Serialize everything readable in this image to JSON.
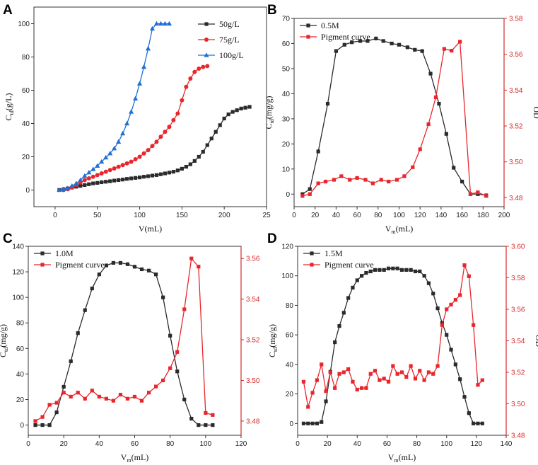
{
  "colors": {
    "black_series": "#2b2b2b",
    "red_series": "#e8262c",
    "blue_series": "#1f6fd6",
    "right_axis": "#d42a2a"
  },
  "chart_data": [
    {
      "panel": "A",
      "type": "line",
      "xlabel": "V(mL)",
      "ylabel": "C",
      "ylabel_sub": "td",
      "ylabel_unit": "(g/L)",
      "xlim": [
        -25,
        250
      ],
      "ylim": [
        -10,
        110
      ],
      "xticks": [
        "0",
        "50",
        "100",
        "150",
        "200",
        "25"
      ],
      "yticks": [
        "0",
        "20",
        "40",
        "60",
        "80",
        "100"
      ],
      "legend_position": "top-right",
      "series": [
        {
          "name": "50g/L",
          "color": "#2b2b2b",
          "marker": "square",
          "x": [
            5,
            10,
            15,
            20,
            25,
            30,
            35,
            40,
            45,
            50,
            55,
            60,
            65,
            70,
            75,
            80,
            85,
            90,
            95,
            100,
            105,
            110,
            115,
            120,
            125,
            130,
            135,
            140,
            145,
            150,
            155,
            160,
            165,
            170,
            175,
            180,
            185,
            190,
            195,
            200,
            205,
            210,
            215,
            220,
            225,
            230
          ],
          "y": [
            0,
            0.5,
            1,
            1.5,
            2,
            2.5,
            3,
            3.5,
            4,
            4.3,
            4.7,
            5,
            5.3,
            5.7,
            6,
            6.3,
            6.7,
            7,
            7.3,
            7.6,
            8,
            8.3,
            8.7,
            9,
            9.5,
            10,
            10.5,
            11,
            11.8,
            12.8,
            14,
            15.5,
            17.5,
            20,
            23,
            27,
            31,
            35,
            39,
            43,
            45.5,
            47,
            48,
            49,
            49.5,
            50
          ]
        },
        {
          "name": "75g/L",
          "color": "#e8262c",
          "marker": "circle",
          "x": [
            10,
            15,
            20,
            25,
            30,
            35,
            40,
            45,
            50,
            55,
            60,
            65,
            70,
            75,
            80,
            85,
            90,
            95,
            100,
            105,
            110,
            115,
            120,
            125,
            130,
            135,
            140,
            145,
            150,
            155,
            160,
            165,
            170,
            175,
            180
          ],
          "y": [
            0,
            0.5,
            1.5,
            3,
            4.5,
            6,
            7,
            8,
            9,
            10,
            11,
            12,
            13,
            14,
            15,
            16,
            17,
            18.5,
            20,
            22,
            24,
            26.5,
            29,
            32,
            35,
            38,
            42,
            46,
            54,
            62,
            67,
            71,
            73,
            74,
            74.5
          ]
        },
        {
          "name": "100g/L",
          "color": "#1f6fd6",
          "marker": "triangle",
          "x": [
            5,
            10,
            15,
            20,
            25,
            30,
            35,
            40,
            45,
            50,
            55,
            60,
            65,
            70,
            75,
            80,
            85,
            90,
            95,
            100,
            105,
            110,
            115,
            120,
            125,
            130,
            135
          ],
          "y": [
            0,
            0.5,
            1,
            2.5,
            4,
            6,
            8.5,
            10.5,
            12.5,
            14.5,
            17,
            19.5,
            22,
            25,
            29,
            34,
            40,
            47,
            55,
            64,
            74,
            85,
            97,
            100,
            100,
            100,
            100
          ]
        }
      ]
    },
    {
      "panel": "B",
      "type": "line",
      "xlabel": "V",
      "xlabel_sub": "m",
      "xlabel_unit": "(mL)",
      "ylabel": "C",
      "ylabel_sub": "td",
      "ylabel_unit": "(mg/g)",
      "y2label": "OD",
      "xlim": [
        0,
        200
      ],
      "ylim": [
        -5,
        70
      ],
      "y2lim": [
        3.475,
        3.58
      ],
      "xticks": [
        "0",
        "20",
        "40",
        "60",
        "80",
        "100",
        "120",
        "140",
        "160",
        "180",
        "200"
      ],
      "yticks": [
        "0",
        "10",
        "20",
        "30",
        "40",
        "50",
        "60",
        "70"
      ],
      "y2ticks": [
        "3.48",
        "3.50",
        "3.52",
        "3.54",
        "3.56",
        "3.58"
      ],
      "legend_position": "top-left",
      "series": [
        {
          "name": "0.5M",
          "color": "#2b2b2b",
          "marker": "square",
          "axis": "left",
          "x": [
            8,
            15,
            23,
            32,
            40,
            48,
            55,
            63,
            70,
            78,
            85,
            93,
            100,
            108,
            115,
            122,
            130,
            138,
            145,
            152,
            160,
            168,
            175,
            183
          ],
          "y": [
            0,
            2,
            17,
            36,
            57,
            59.5,
            60.5,
            61,
            61,
            62,
            61,
            60,
            59.5,
            58.5,
            57.5,
            57,
            48,
            36,
            24,
            10.5,
            5,
            0,
            0,
            -0.5
          ]
        },
        {
          "name": "Pigment curve",
          "color": "#e8262c",
          "marker": "square",
          "axis": "right",
          "x": [
            8,
            15,
            23,
            30,
            38,
            45,
            53,
            60,
            68,
            75,
            83,
            90,
            98,
            105,
            113,
            120,
            128,
            135,
            143,
            150,
            158,
            168,
            175,
            183
          ],
          "y": [
            3.481,
            3.482,
            3.488,
            3.489,
            3.49,
            3.492,
            3.49,
            3.491,
            3.49,
            3.488,
            3.49,
            3.489,
            3.49,
            3.492,
            3.497,
            3.507,
            3.521,
            3.536,
            3.563,
            3.562,
            3.567,
            3.482,
            3.483,
            3.481
          ]
        }
      ]
    },
    {
      "panel": "C",
      "type": "line",
      "xlabel": "V",
      "xlabel_sub": "m",
      "xlabel_unit": "(mL)",
      "ylabel": "C",
      "ylabel_sub": "td",
      "ylabel_unit": "(mg/g)",
      "y2label": "",
      "xlim": [
        0,
        120
      ],
      "ylim": [
        -8,
        140
      ],
      "y2lim": [
        3.473,
        3.566
      ],
      "xticks": [
        "0",
        "20",
        "40",
        "60",
        "80",
        "100",
        "120"
      ],
      "yticks": [
        "0",
        "20",
        "40",
        "60",
        "80",
        "100",
        "120",
        "140"
      ],
      "y2ticks": [
        "3.48",
        "3.50",
        "3.52",
        "3.54",
        "3.56"
      ],
      "legend_position": "top-left",
      "series": [
        {
          "name": "1.0M",
          "color": "#2b2b2b",
          "marker": "square",
          "axis": "left",
          "x": [
            4,
            8,
            12,
            16,
            20,
            24,
            28,
            32,
            36,
            40,
            44,
            48,
            52,
            56,
            60,
            64,
            68,
            72,
            76,
            80,
            84,
            88,
            92,
            96,
            100,
            104
          ],
          "y": [
            0,
            0,
            0,
            10,
            30,
            50,
            72,
            90,
            107,
            118,
            125,
            127,
            127,
            126,
            124,
            122,
            121,
            118,
            100,
            70,
            42,
            20,
            5,
            0,
            0,
            0
          ]
        },
        {
          "name": "Pigment curve",
          "color": "#e8262c",
          "marker": "square",
          "axis": "right",
          "x": [
            4,
            8,
            12,
            16,
            20,
            24,
            28,
            32,
            36,
            40,
            44,
            48,
            52,
            56,
            60,
            64,
            68,
            72,
            76,
            80,
            84,
            88,
            92,
            96,
            100,
            104
          ],
          "y": [
            3.48,
            3.482,
            3.488,
            3.489,
            3.494,
            3.492,
            3.494,
            3.491,
            3.495,
            3.492,
            3.491,
            3.49,
            3.493,
            3.491,
            3.492,
            3.49,
            3.494,
            3.497,
            3.5,
            3.506,
            3.514,
            3.535,
            3.56,
            3.556,
            3.484,
            3.483
          ]
        }
      ]
    },
    {
      "panel": "D",
      "type": "line",
      "xlabel": "V",
      "xlabel_sub": "m",
      "xlabel_unit": "(mL)",
      "ylabel": "C",
      "ylabel_sub": "td",
      "ylabel_unit": "(mg/g)",
      "y2label": "OD",
      "xlim": [
        0,
        140
      ],
      "ylim": [
        -8,
        120
      ],
      "y2lim": [
        3.48,
        3.6
      ],
      "xticks": [
        "0",
        "20",
        "40",
        "60",
        "80",
        "100",
        "120",
        "140"
      ],
      "yticks": [
        "0",
        "20",
        "40",
        "60",
        "80",
        "100",
        "120"
      ],
      "y2ticks": [
        "3.48",
        "3.50",
        "3.52",
        "3.54",
        "3.56",
        "3.58",
        "3.60"
      ],
      "legend_position": "top-left",
      "series": [
        {
          "name": "1.5M",
          "color": "#2b2b2b",
          "marker": "square",
          "axis": "left",
          "x": [
            4,
            7,
            10,
            13,
            16,
            19,
            22,
            25,
            28,
            31,
            34,
            37,
            40,
            43,
            46,
            49,
            52,
            55,
            58,
            61,
            64,
            67,
            70,
            73,
            76,
            79,
            82,
            85,
            88,
            91,
            94,
            97,
            100,
            103,
            106,
            109,
            112,
            115,
            118,
            121,
            124
          ],
          "y": [
            0,
            0,
            0,
            0,
            1,
            15,
            35,
            55,
            66,
            75,
            85,
            92,
            97,
            100,
            102,
            103,
            104,
            104,
            104,
            105,
            105,
            105,
            104,
            104,
            104,
            103,
            103,
            100,
            95,
            88,
            78,
            68,
            60,
            50,
            40,
            30,
            18,
            7,
            0,
            0,
            0
          ]
        },
        {
          "name": "Pigment curve",
          "color": "#e8262c",
          "marker": "square",
          "axis": "right",
          "x": [
            4,
            7,
            10,
            13,
            16,
            19,
            22,
            25,
            28,
            31,
            34,
            37,
            40,
            43,
            46,
            49,
            52,
            55,
            58,
            61,
            64,
            67,
            70,
            73,
            76,
            79,
            82,
            85,
            88,
            91,
            94,
            97,
            100,
            103,
            106,
            109,
            112,
            115,
            118,
            121,
            124
          ],
          "y": [
            3.514,
            3.498,
            3.507,
            3.515,
            3.525,
            3.508,
            3.52,
            3.51,
            3.519,
            3.52,
            3.522,
            3.514,
            3.509,
            3.51,
            3.51,
            3.519,
            3.521,
            3.515,
            3.516,
            3.514,
            3.524,
            3.519,
            3.52,
            3.517,
            3.524,
            3.516,
            3.521,
            3.515,
            3.52,
            3.519,
            3.524,
            3.55,
            3.56,
            3.563,
            3.566,
            3.569,
            3.588,
            3.581,
            3.55,
            3.512,
            3.515
          ]
        }
      ]
    }
  ]
}
